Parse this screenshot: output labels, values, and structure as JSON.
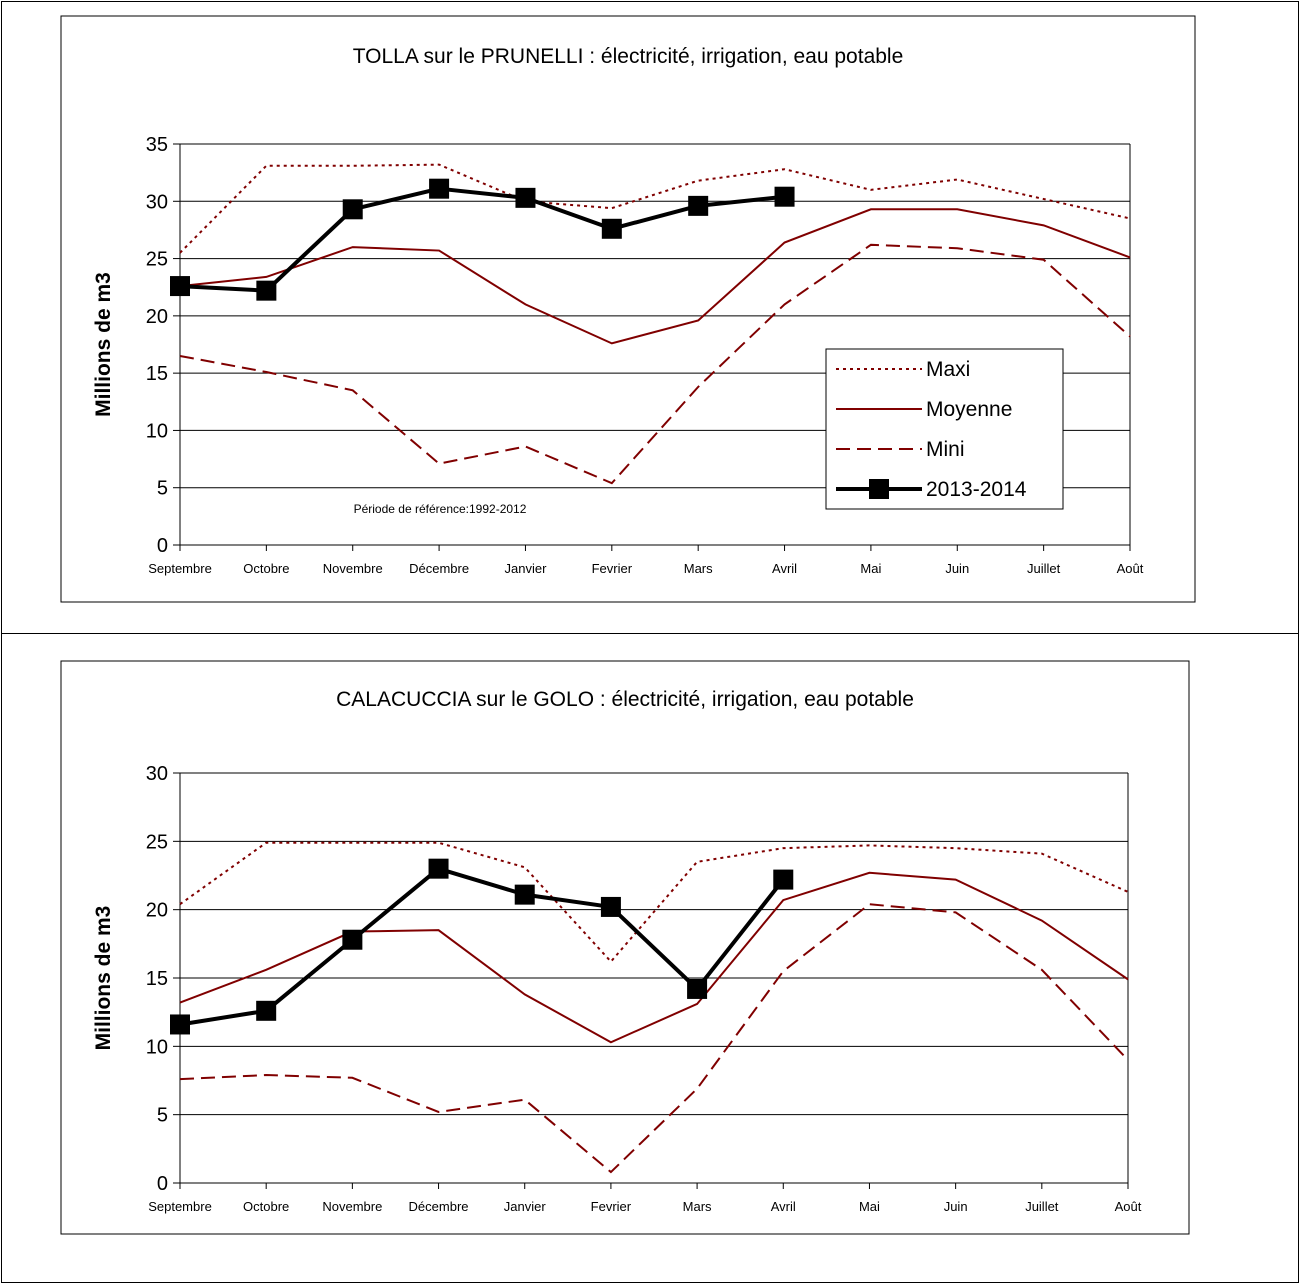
{
  "colors": {
    "maxi": "#800000",
    "moyenne": "#800000",
    "mini": "#800000",
    "current": "#000000",
    "grid": "#000000"
  },
  "chart_data": [
    {
      "type": "line",
      "title": "TOLLA sur le PRUNELLI : électricité, irrigation, eau potable",
      "ylabel": "Millions de m3",
      "xlabel": "",
      "ylim": [
        0,
        35
      ],
      "yticks": [
        0,
        5,
        10,
        15,
        20,
        25,
        30,
        35
      ],
      "grid": true,
      "legend": "inside-right",
      "note": "Période de référence:1992-2012",
      "categories": [
        "Septembre",
        "Octobre",
        "Novembre",
        "Décembre",
        "Janvier",
        "Fevrier",
        "Mars",
        "Avril",
        "Mai",
        "Juin",
        "Juillet",
        "Août"
      ],
      "series": [
        {
          "name": "Maxi",
          "style": "dotted",
          "values": [
            25.5,
            33.1,
            33.1,
            33.2,
            30.0,
            29.4,
            31.8,
            32.8,
            31.0,
            31.9,
            30.2,
            28.5
          ]
        },
        {
          "name": "Moyenne",
          "style": "solid",
          "values": [
            22.6,
            23.4,
            26.0,
            25.7,
            21.0,
            17.6,
            19.6,
            26.4,
            29.3,
            29.3,
            27.9,
            25.1
          ]
        },
        {
          "name": "Mini",
          "style": "dashed",
          "values": [
            16.5,
            15.1,
            13.5,
            7.1,
            8.6,
            5.4,
            13.8,
            21.0,
            26.2,
            25.9,
            24.9,
            18.2
          ]
        },
        {
          "name": "2013-2014",
          "style": "bold-marker",
          "values": [
            22.6,
            22.2,
            29.3,
            31.1,
            30.3,
            27.6,
            29.6,
            30.4,
            null,
            null,
            null,
            null
          ]
        }
      ]
    },
    {
      "type": "line",
      "title": "CALACUCCIA sur le GOLO : électricité, irrigation, eau potable",
      "ylabel": "Millions de m3",
      "xlabel": "",
      "ylim": [
        0,
        30
      ],
      "yticks": [
        0,
        5,
        10,
        15,
        20,
        25,
        30
      ],
      "grid": true,
      "legend": "",
      "note": "",
      "categories": [
        "Septembre",
        "Octobre",
        "Novembre",
        "Décembre",
        "Janvier",
        "Fevrier",
        "Mars",
        "Avril",
        "Mai",
        "Juin",
        "Juillet",
        "Août"
      ],
      "series": [
        {
          "name": "",
          "style": "dotted",
          "values": [
            20.4,
            24.9,
            24.9,
            24.9,
            23.1,
            16.2,
            23.5,
            24.5,
            24.7,
            24.5,
            24.1,
            21.3
          ]
        },
        {
          "name": "",
          "style": "solid",
          "values": [
            13.2,
            15.6,
            18.4,
            18.5,
            13.8,
            10.3,
            13.1,
            20.7,
            22.7,
            22.2,
            19.2,
            14.9
          ]
        },
        {
          "name": "",
          "style": "dashed",
          "values": [
            7.6,
            7.9,
            7.7,
            5.2,
            6.1,
            0.8,
            6.9,
            15.5,
            20.4,
            19.8,
            15.6,
            9.0
          ]
        },
        {
          "name": "",
          "style": "bold-marker",
          "values": [
            11.6,
            12.6,
            17.8,
            23.0,
            21.1,
            20.2,
            14.2,
            22.2,
            null,
            null,
            null,
            null
          ]
        }
      ]
    }
  ]
}
